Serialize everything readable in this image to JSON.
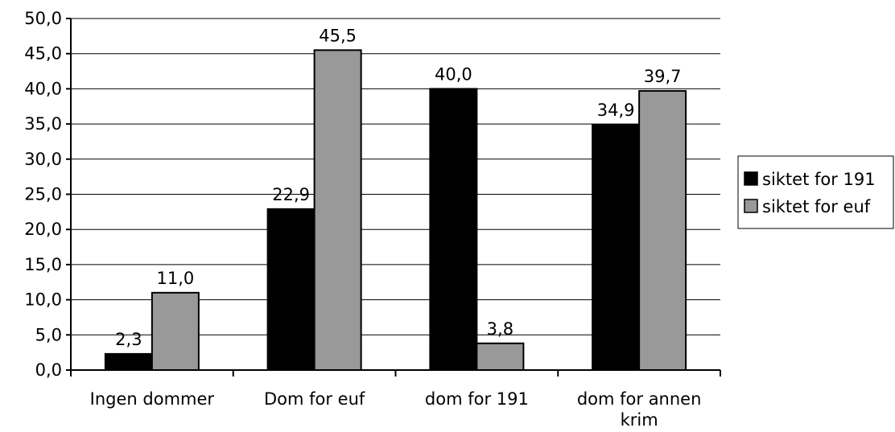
{
  "chart_data": {
    "type": "bar",
    "categories": [
      [
        "Ingen dommer"
      ],
      [
        "Dom for euf"
      ],
      [
        "dom for 191"
      ],
      [
        "dom for annen",
        "krim"
      ]
    ],
    "series": [
      {
        "name": "siktet for 191",
        "color": "#000000",
        "values": [
          2.3,
          22.9,
          40.0,
          34.9
        ],
        "labels": [
          "2,3",
          "22,9",
          "40,0",
          "34,9"
        ]
      },
      {
        "name": "siktet for euf",
        "color": "#999999",
        "values": [
          11.0,
          45.5,
          3.8,
          39.7
        ],
        "labels": [
          "11,0",
          "45,5",
          "3,8",
          "39,7"
        ]
      }
    ],
    "ylim": [
      0,
      50
    ],
    "y_ticks": [
      "0,0",
      "5,0",
      "10,0",
      "15,0",
      "20,0",
      "25,0",
      "30,0",
      "35,0",
      "40,0",
      "45,0",
      "50,0"
    ],
    "grid": true,
    "legend_position": "right"
  }
}
